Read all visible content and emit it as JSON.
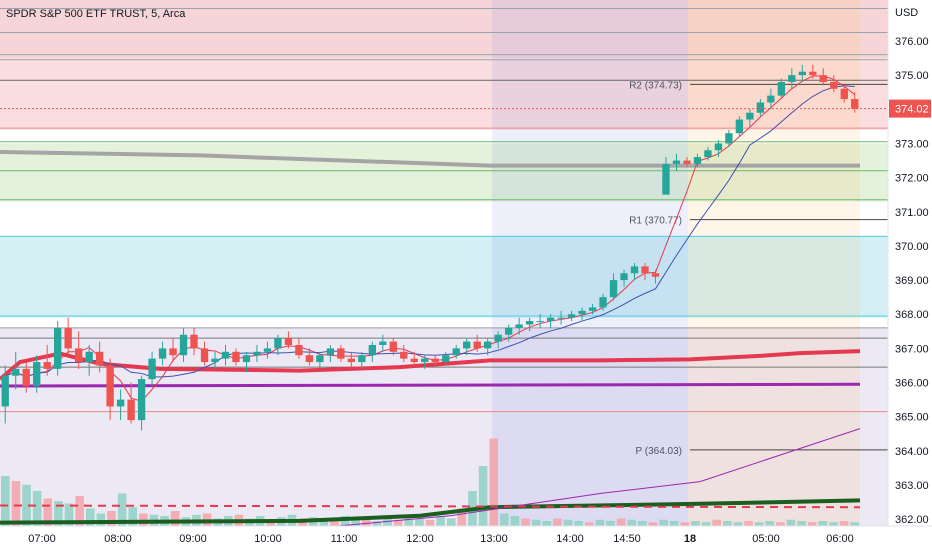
{
  "header": {
    "symbol_title": "SPDR S&P 500 ETF TRUST, 5, Arca"
  },
  "chart_data": {
    "type": "candlestick",
    "title": "SPDR S&P 500 ETF TRUST, 5, Arca",
    "currency": "USD",
    "ylim": [
      361.8,
      377.2
    ],
    "y_ticks": [
      "362.00",
      "363.00",
      "364.00",
      "365.00",
      "366.00",
      "367.00",
      "368.00",
      "369.00",
      "370.00",
      "371.00",
      "372.00",
      "373.00",
      "374.00",
      "375.00",
      "376.00"
    ],
    "x_ticks": [
      "07:00",
      "08:00",
      "09:00",
      "10:00",
      "11:00",
      "12:00",
      "13:00",
      "14:00",
      "14:50",
      "18",
      "05:00",
      "06:00"
    ],
    "last_price": "374.02",
    "pivot_levels": [
      {
        "label": "R2 (374.73)",
        "value": 374.73
      },
      {
        "label": "R1 (370.77)",
        "value": 370.77
      },
      {
        "label": "P (364.03)",
        "value": 364.03
      }
    ],
    "zones": [
      {
        "from": 375.5,
        "to": 377.2,
        "color": "#f6d5d8"
      },
      {
        "from": 373.4,
        "to": 375.5,
        "color": "#fbdedf"
      },
      {
        "from": 371.3,
        "to": 373.0,
        "color": "#e4f2dc"
      },
      {
        "from": 367.9,
        "to": 370.3,
        "color": "#d4f0f5"
      },
      {
        "from": 361.8,
        "to": 367.6,
        "color": "#ece8f4"
      }
    ],
    "hlines": [
      {
        "value": 376.95,
        "color": "#9aa3ad"
      },
      {
        "value": 376.25,
        "color": "#9aa3ad"
      },
      {
        "value": 375.6,
        "color": "#9aa3ad"
      },
      {
        "value": 375.45,
        "color": "#9aa3ad"
      },
      {
        "value": 374.85,
        "color": "#666666"
      },
      {
        "value": 373.45,
        "color": "#e88a8a"
      },
      {
        "value": 373.05,
        "color": "#66bb6a"
      },
      {
        "value": 372.2,
        "color": "#66bb6a"
      },
      {
        "value": 371.35,
        "color": "#66bb6a"
      },
      {
        "value": 370.28,
        "color": "#4dd0e1"
      },
      {
        "value": 367.95,
        "color": "#4dd0e1"
      },
      {
        "value": 367.6,
        "color": "#999999"
      },
      {
        "value": 367.3,
        "color": "#777777"
      },
      {
        "value": 366.45,
        "color": "#777777"
      },
      {
        "value": 365.15,
        "color": "#e88a8a"
      }
    ],
    "series": [
      {
        "name": "",
        "color": "#e53950",
        "width": 4,
        "points": [
          [
            0,
            366.1
          ],
          [
            20,
            366.6
          ],
          [
            60,
            366.85
          ],
          [
            100,
            366.55
          ],
          [
            160,
            366.4
          ],
          [
            300,
            366.35
          ],
          [
            400,
            366.45
          ],
          [
            490,
            366.65
          ],
          [
            600,
            366.65
          ],
          [
            690,
            366.68
          ],
          [
            760,
            366.78
          ],
          [
            800,
            366.86
          ],
          [
            860,
            366.92
          ]
        ]
      },
      {
        "name": "",
        "color": "#9c27b0",
        "width": 3,
        "points": [
          [
            0,
            365.9
          ],
          [
            860,
            365.95
          ]
        ]
      },
      {
        "name": "",
        "color": "#a5a5a5",
        "width": 4,
        "points": [
          [
            0,
            372.75
          ],
          [
            200,
            372.65
          ],
          [
            490,
            372.35
          ],
          [
            860,
            372.35
          ]
        ]
      },
      {
        "name": "",
        "color": "#1b5e20",
        "width": 4,
        "points": [
          [
            0,
            361.9
          ],
          [
            300,
            361.95
          ],
          [
            420,
            362.1
          ],
          [
            490,
            362.35
          ],
          [
            700,
            362.45
          ],
          [
            860,
            362.55
          ]
        ]
      },
      {
        "name": "",
        "color": "#9c27b0",
        "width": 1,
        "points": [
          [
            300,
            361.7
          ],
          [
            450,
            362.1
          ],
          [
            600,
            362.75
          ],
          [
            700,
            363.1
          ],
          [
            860,
            364.65
          ]
        ]
      },
      {
        "name": "",
        "color": "#e53950",
        "width": 2,
        "dash": "8,6",
        "points": [
          [
            0,
            362.4
          ],
          [
            860,
            362.35
          ]
        ]
      }
    ],
    "candles": [
      [
        365.3,
        366.5,
        364.8,
        366.2
      ],
      [
        366.2,
        366.9,
        365.8,
        366.4
      ],
      [
        366.4,
        366.6,
        365.7,
        365.9
      ],
      [
        365.9,
        366.8,
        365.7,
        366.6
      ],
      [
        366.6,
        367.1,
        366.2,
        366.4
      ],
      [
        366.4,
        367.8,
        366.2,
        367.6
      ],
      [
        367.6,
        367.9,
        366.8,
        367.0
      ],
      [
        367.0,
        367.5,
        366.4,
        366.6
      ],
      [
        366.6,
        367.1,
        366.2,
        366.9
      ],
      [
        366.9,
        367.2,
        366.3,
        366.5
      ],
      [
        366.5,
        366.7,
        364.9,
        365.3
      ],
      [
        365.3,
        365.8,
        364.9,
        365.5
      ],
      [
        365.5,
        366.0,
        364.8,
        364.9
      ],
      [
        364.9,
        366.2,
        364.6,
        366.1
      ],
      [
        366.1,
        366.9,
        365.9,
        366.7
      ],
      [
        366.7,
        367.2,
        366.5,
        367.0
      ],
      [
        367.0,
        367.3,
        366.6,
        366.8
      ],
      [
        366.8,
        367.6,
        366.6,
        367.4
      ],
      [
        367.4,
        367.6,
        366.8,
        367.0
      ],
      [
        367.0,
        367.2,
        366.5,
        366.6
      ],
      [
        366.6,
        366.9,
        366.4,
        366.7
      ],
      [
        366.7,
        367.1,
        366.5,
        366.9
      ],
      [
        366.9,
        367.0,
        366.5,
        366.6
      ],
      [
        366.6,
        366.9,
        366.3,
        366.8
      ],
      [
        366.8,
        367.1,
        366.6,
        366.9
      ],
      [
        366.9,
        367.2,
        366.7,
        367.0
      ],
      [
        367.0,
        367.4,
        366.8,
        367.3
      ],
      [
        367.3,
        367.5,
        367.0,
        367.1
      ],
      [
        367.1,
        367.3,
        366.7,
        366.8
      ],
      [
        366.8,
        367.0,
        366.5,
        366.6
      ],
      [
        366.6,
        366.9,
        366.4,
        366.8
      ],
      [
        366.8,
        367.1,
        366.6,
        367.0
      ],
      [
        367.0,
        367.1,
        366.6,
        366.7
      ],
      [
        366.7,
        366.9,
        366.4,
        366.6
      ],
      [
        366.6,
        366.9,
        366.4,
        366.8
      ],
      [
        366.8,
        367.2,
        366.6,
        367.1
      ],
      [
        367.1,
        367.4,
        366.9,
        367.2
      ],
      [
        367.2,
        367.3,
        366.8,
        366.9
      ],
      [
        366.9,
        367.1,
        366.6,
        366.7
      ],
      [
        366.7,
        366.9,
        366.5,
        366.6
      ],
      [
        366.6,
        366.8,
        366.4,
        366.7
      ],
      [
        366.7,
        366.8,
        366.5,
        366.6
      ],
      [
        366.6,
        366.9,
        366.5,
        366.8
      ],
      [
        366.8,
        367.1,
        366.7,
        367.0
      ],
      [
        367.0,
        367.3,
        366.8,
        367.2
      ],
      [
        367.2,
        367.4,
        366.9,
        367.0
      ],
      [
        367.0,
        367.3,
        366.8,
        367.2
      ],
      [
        367.2,
        367.5,
        367.0,
        367.4
      ],
      [
        367.4,
        367.7,
        367.2,
        367.6
      ],
      [
        367.6,
        367.9,
        367.4,
        367.7
      ],
      [
        367.7,
        367.9,
        367.5,
        367.8
      ],
      [
        367.8,
        368.0,
        367.6,
        367.8
      ],
      [
        367.8,
        368.0,
        367.6,
        367.9
      ],
      [
        367.9,
        368.1,
        367.7,
        367.9
      ],
      [
        367.9,
        368.1,
        367.8,
        368.0
      ],
      [
        368.0,
        368.2,
        367.8,
        368.1
      ],
      [
        368.1,
        368.3,
        368.0,
        368.2
      ],
      [
        368.2,
        368.6,
        368.1,
        368.5
      ],
      [
        368.5,
        369.2,
        368.4,
        369.0
      ],
      [
        369.0,
        369.3,
        368.8,
        369.2
      ],
      [
        369.2,
        369.5,
        369.0,
        369.4
      ],
      [
        369.4,
        369.5,
        369.0,
        369.2
      ],
      [
        369.2,
        369.3,
        368.9,
        369.1
      ],
      [
        371.5,
        372.6,
        371.6,
        372.4
      ],
      [
        372.4,
        372.7,
        372.2,
        372.5
      ],
      [
        372.5,
        372.6,
        372.3,
        372.4
      ],
      [
        372.4,
        372.7,
        372.3,
        372.6
      ],
      [
        372.6,
        372.9,
        372.5,
        372.8
      ],
      [
        372.8,
        373.1,
        372.6,
        373.0
      ],
      [
        373.0,
        373.4,
        372.9,
        373.3
      ],
      [
        373.3,
        373.8,
        373.2,
        373.7
      ],
      [
        373.7,
        374.0,
        373.5,
        373.9
      ],
      [
        373.9,
        374.3,
        373.8,
        374.2
      ],
      [
        374.2,
        374.6,
        374.0,
        374.4
      ],
      [
        374.4,
        374.9,
        374.3,
        374.8
      ],
      [
        374.8,
        375.2,
        374.6,
        375.0
      ],
      [
        375.0,
        375.3,
        374.8,
        375.1
      ],
      [
        375.1,
        375.3,
        374.9,
        375.0
      ],
      [
        375.0,
        375.2,
        374.7,
        374.8
      ],
      [
        374.8,
        375.0,
        374.5,
        374.6
      ],
      [
        374.6,
        374.7,
        374.2,
        374.3
      ],
      [
        374.3,
        374.5,
        373.9,
        374.02
      ]
    ],
    "volumes": [
      40,
      36,
      33,
      28,
      22,
      20,
      18,
      24,
      14,
      10,
      12,
      26,
      15,
      10,
      9,
      8,
      12,
      7,
      9,
      10,
      6,
      8,
      9,
      6,
      8,
      5,
      7,
      9,
      6,
      7,
      5,
      6,
      8,
      5,
      7,
      4,
      6,
      5,
      7,
      6,
      5,
      8,
      6,
      14,
      28,
      48,
      70,
      10,
      8,
      6,
      5,
      4,
      6,
      5,
      4,
      3,
      5,
      4,
      6,
      5,
      4,
      3,
      5,
      4,
      3,
      4,
      3,
      5,
      4,
      3,
      4,
      3,
      4,
      3,
      5,
      4,
      3,
      4,
      3,
      4,
      3
    ]
  }
}
